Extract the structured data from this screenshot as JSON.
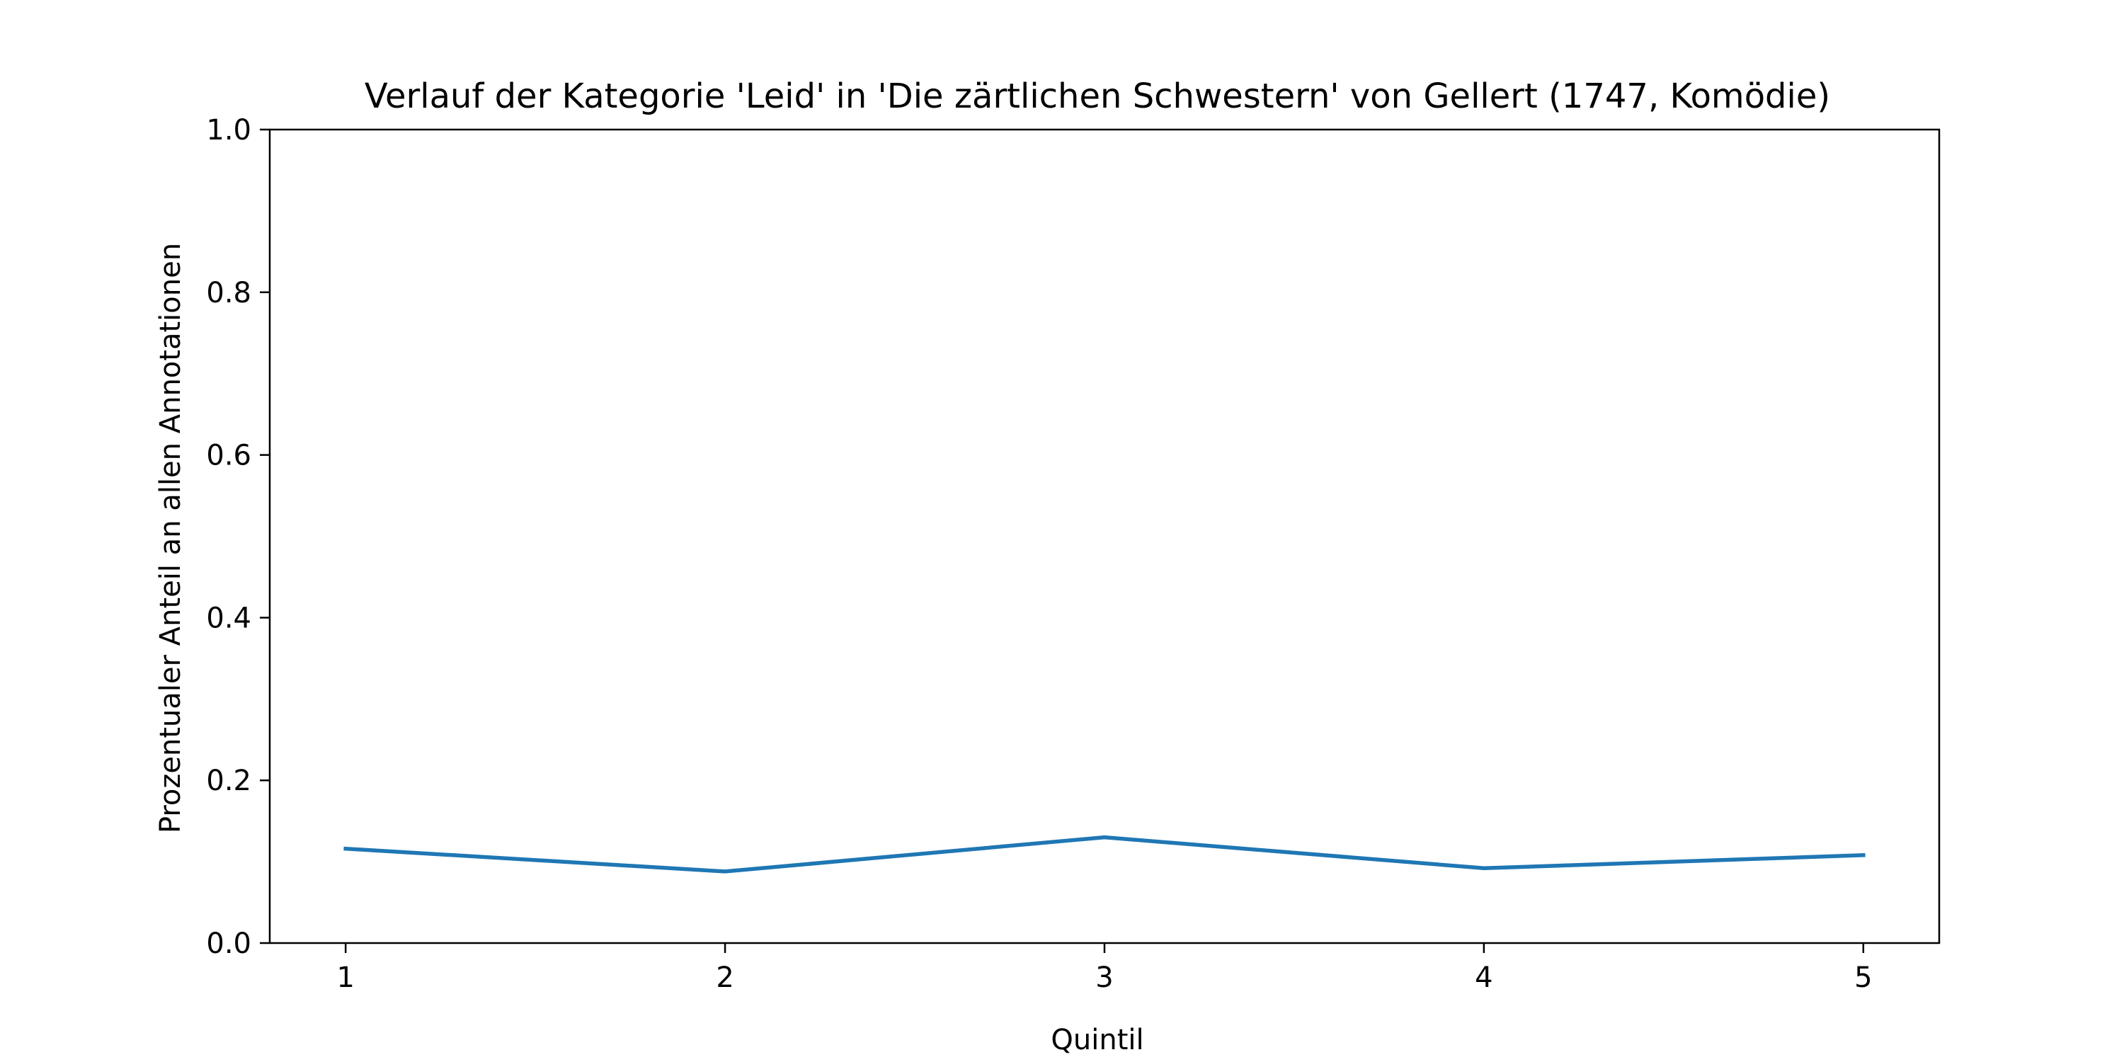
{
  "chart_data": {
    "type": "line",
    "title": "Verlauf der Kategorie 'Leid' in 'Die zärtlichen Schwestern' von Gellert (1747, Komödie)",
    "xlabel": "Quintil",
    "ylabel": "Prozentualer Anteil an allen Annotationen",
    "x": [
      1,
      2,
      3,
      4,
      5
    ],
    "series": [
      {
        "values": [
          0.116,
          0.088,
          0.13,
          0.092,
          0.108
        ]
      }
    ],
    "xlim": [
      0.8,
      5.2
    ],
    "ylim": [
      0.0,
      1.0
    ],
    "x_ticks": [
      "1",
      "2",
      "3",
      "4",
      "5"
    ],
    "y_ticks": [
      "0.0",
      "0.2",
      "0.4",
      "0.6",
      "0.8",
      "1.0"
    ],
    "grid": false,
    "colors": {
      "line": "#1f77b4",
      "axes": "#000000",
      "background": "#ffffff"
    }
  }
}
